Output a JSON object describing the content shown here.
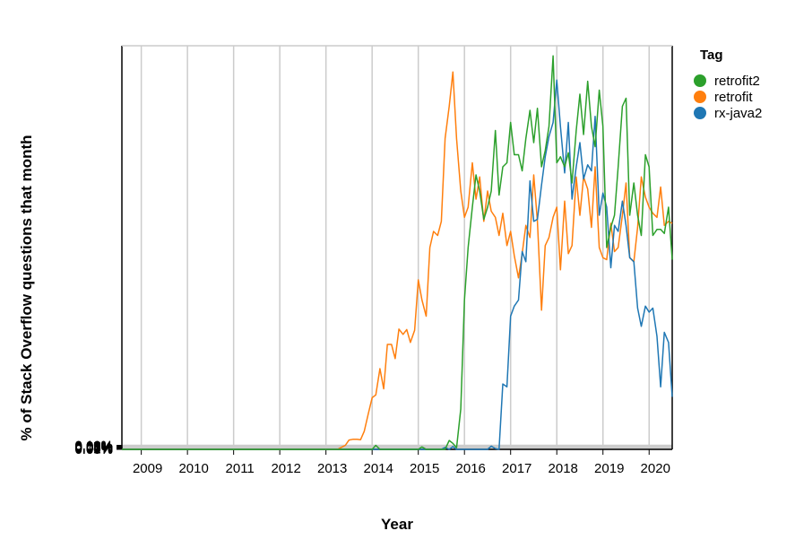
{
  "chart_data": {
    "type": "line",
    "xlabel": "Year",
    "ylabel": "% of Stack Overflow questions that month",
    "legend_title": "Tag",
    "legend_position": "top-right",
    "grid": true,
    "xlim": [
      2008.58,
      2020.5
    ],
    "ylim": [
      0,
      0.1
    ],
    "x_ticks": [
      "2009",
      "2010",
      "2011",
      "2012",
      "2013",
      "2014",
      "2015",
      "2016",
      "2017",
      "2018",
      "2019",
      "2020"
    ],
    "y_ticks": [
      "0.00%",
      "0.01%",
      "0.02%",
      "0.03%",
      "0.04%",
      "0.05%",
      "0.06%",
      "0.07%",
      "0.08%",
      "0.09%",
      "0.10%"
    ],
    "series": [
      {
        "name": "retrofit2",
        "color": "#2ca02c",
        "points": [
          [
            2008.58,
            0
          ],
          [
            2014.0,
            0
          ],
          [
            2014.08,
            0.001
          ],
          [
            2014.17,
            0
          ],
          [
            2015.0,
            0
          ],
          [
            2015.08,
            0.0006
          ],
          [
            2015.17,
            0
          ],
          [
            2015.58,
            0
          ],
          [
            2015.67,
            0.0022
          ],
          [
            2015.75,
            0.0015
          ],
          [
            2015.83,
            0.0004
          ],
          [
            2015.92,
            0.01
          ],
          [
            2016.0,
            0.037
          ],
          [
            2016.08,
            0.05
          ],
          [
            2016.17,
            0.06
          ],
          [
            2016.25,
            0.068
          ],
          [
            2016.33,
            0.064
          ],
          [
            2016.42,
            0.057
          ],
          [
            2016.5,
            0.06
          ],
          [
            2016.58,
            0.064
          ],
          [
            2016.67,
            0.079
          ],
          [
            2016.75,
            0.063
          ],
          [
            2016.83,
            0.07
          ],
          [
            2016.92,
            0.071
          ],
          [
            2017.0,
            0.081
          ],
          [
            2017.08,
            0.073
          ],
          [
            2017.17,
            0.073
          ],
          [
            2017.25,
            0.069
          ],
          [
            2017.33,
            0.077
          ],
          [
            2017.42,
            0.084
          ],
          [
            2017.5,
            0.076
          ],
          [
            2017.58,
            0.0845
          ],
          [
            2017.67,
            0.07
          ],
          [
            2017.75,
            0.074
          ],
          [
            2017.83,
            0.08
          ],
          [
            2017.92,
            0.0975
          ],
          [
            2018.0,
            0.071
          ],
          [
            2018.08,
            0.0725
          ],
          [
            2018.17,
            0.07
          ],
          [
            2018.25,
            0.0735
          ],
          [
            2018.33,
            0.066
          ],
          [
            2018.42,
            0.079
          ],
          [
            2018.5,
            0.088
          ],
          [
            2018.58,
            0.078
          ],
          [
            2018.67,
            0.0912
          ],
          [
            2018.75,
            0.08
          ],
          [
            2018.83,
            0.075
          ],
          [
            2018.92,
            0.089
          ],
          [
            2019.0,
            0.08
          ],
          [
            2019.08,
            0.05
          ],
          [
            2019.17,
            0.055
          ],
          [
            2019.25,
            0.058
          ],
          [
            2019.33,
            0.07
          ],
          [
            2019.42,
            0.085
          ],
          [
            2019.5,
            0.087
          ],
          [
            2019.58,
            0.058
          ],
          [
            2019.67,
            0.066
          ],
          [
            2019.75,
            0.058
          ],
          [
            2019.83,
            0.053
          ],
          [
            2019.92,
            0.073
          ],
          [
            2020.0,
            0.07
          ],
          [
            2020.08,
            0.053
          ],
          [
            2020.17,
            0.0545
          ],
          [
            2020.25,
            0.0545
          ],
          [
            2020.33,
            0.0535
          ],
          [
            2020.42,
            0.06
          ],
          [
            2020.5,
            0.047
          ]
        ]
      },
      {
        "name": "retrofit",
        "color": "#ff7f0e",
        "points": [
          [
            2008.58,
            0
          ],
          [
            2013.25,
            0
          ],
          [
            2013.33,
            0.0005
          ],
          [
            2013.42,
            0.001
          ],
          [
            2013.5,
            0.0023
          ],
          [
            2013.58,
            0.0025
          ],
          [
            2013.67,
            0.0025
          ],
          [
            2013.75,
            0.0024
          ],
          [
            2013.83,
            0.0045
          ],
          [
            2013.92,
            0.009
          ],
          [
            2014.0,
            0.0128
          ],
          [
            2014.08,
            0.0135
          ],
          [
            2014.17,
            0.02
          ],
          [
            2014.25,
            0.015
          ],
          [
            2014.33,
            0.026
          ],
          [
            2014.42,
            0.026
          ],
          [
            2014.5,
            0.0225
          ],
          [
            2014.58,
            0.0298
          ],
          [
            2014.67,
            0.0285
          ],
          [
            2014.75,
            0.0297
          ],
          [
            2014.83,
            0.0265
          ],
          [
            2014.92,
            0.0295
          ],
          [
            2015.0,
            0.042
          ],
          [
            2015.08,
            0.037
          ],
          [
            2015.17,
            0.033
          ],
          [
            2015.25,
            0.05
          ],
          [
            2015.33,
            0.054
          ],
          [
            2015.42,
            0.053
          ],
          [
            2015.5,
            0.0565
          ],
          [
            2015.58,
            0.077
          ],
          [
            2015.67,
            0.085
          ],
          [
            2015.75,
            0.0935
          ],
          [
            2015.83,
            0.077
          ],
          [
            2015.92,
            0.064
          ],
          [
            2016.0,
            0.0575
          ],
          [
            2016.08,
            0.06
          ],
          [
            2016.17,
            0.071
          ],
          [
            2016.25,
            0.062
          ],
          [
            2016.33,
            0.0675
          ],
          [
            2016.42,
            0.0565
          ],
          [
            2016.5,
            0.064
          ],
          [
            2016.58,
            0.059
          ],
          [
            2016.67,
            0.0575
          ],
          [
            2016.75,
            0.053
          ],
          [
            2016.83,
            0.0585
          ],
          [
            2016.92,
            0.0505
          ],
          [
            2017.0,
            0.054
          ],
          [
            2017.08,
            0.048
          ],
          [
            2017.17,
            0.0425
          ],
          [
            2017.25,
            0.0485
          ],
          [
            2017.33,
            0.0555
          ],
          [
            2017.42,
            0.0525
          ],
          [
            2017.5,
            0.068
          ],
          [
            2017.58,
            0.0565
          ],
          [
            2017.67,
            0.0345
          ],
          [
            2017.75,
            0.0505
          ],
          [
            2017.83,
            0.0525
          ],
          [
            2017.92,
            0.0575
          ],
          [
            2018.0,
            0.06
          ],
          [
            2018.08,
            0.0445
          ],
          [
            2018.17,
            0.0615
          ],
          [
            2018.25,
            0.0485
          ],
          [
            2018.33,
            0.0505
          ],
          [
            2018.42,
            0.0675
          ],
          [
            2018.5,
            0.058
          ],
          [
            2018.58,
            0.0675
          ],
          [
            2018.67,
            0.0645
          ],
          [
            2018.75,
            0.055
          ],
          [
            2018.83,
            0.07
          ],
          [
            2018.92,
            0.05
          ],
          [
            2019.0,
            0.0475
          ],
          [
            2019.08,
            0.047
          ],
          [
            2019.17,
            0.056
          ],
          [
            2019.25,
            0.049
          ],
          [
            2019.33,
            0.05
          ],
          [
            2019.42,
            0.058
          ],
          [
            2019.5,
            0.066
          ],
          [
            2019.58,
            0.0475
          ],
          [
            2019.67,
            0.0465
          ],
          [
            2019.75,
            0.055
          ],
          [
            2019.83,
            0.0675
          ],
          [
            2019.92,
            0.0625
          ],
          [
            2020.0,
            0.06
          ],
          [
            2020.08,
            0.0585
          ],
          [
            2020.17,
            0.0575
          ],
          [
            2020.25,
            0.065
          ],
          [
            2020.33,
            0.0555
          ],
          [
            2020.42,
            0.0565
          ],
          [
            2020.5,
            0.056
          ]
        ]
      },
      {
        "name": "rx-java2",
        "color": "#1f77b4",
        "points": [
          [
            2008.58,
            0
          ],
          [
            2015.5,
            0
          ],
          [
            2015.58,
            0.0005
          ],
          [
            2015.67,
            0
          ],
          [
            2015.75,
            0.0007
          ],
          [
            2015.83,
            0
          ],
          [
            2016.42,
            0
          ],
          [
            2016.5,
            0
          ],
          [
            2016.58,
            0.0008
          ],
          [
            2016.67,
            0.0002
          ],
          [
            2016.75,
            0
          ],
          [
            2016.83,
            0.0162
          ],
          [
            2016.92,
            0.0155
          ],
          [
            2017.0,
            0.033
          ],
          [
            2017.08,
            0.0355
          ],
          [
            2017.17,
            0.037
          ],
          [
            2017.25,
            0.049
          ],
          [
            2017.33,
            0.0465
          ],
          [
            2017.42,
            0.0665
          ],
          [
            2017.5,
            0.0565
          ],
          [
            2017.58,
            0.057
          ],
          [
            2017.67,
            0.0655
          ],
          [
            2017.75,
            0.0725
          ],
          [
            2017.83,
            0.0775
          ],
          [
            2017.92,
            0.081
          ],
          [
            2018.0,
            0.0915
          ],
          [
            2018.08,
            0.08
          ],
          [
            2018.17,
            0.0685
          ],
          [
            2018.25,
            0.081
          ],
          [
            2018.33,
            0.062
          ],
          [
            2018.42,
            0.07
          ],
          [
            2018.5,
            0.076
          ],
          [
            2018.58,
            0.067
          ],
          [
            2018.67,
            0.0705
          ],
          [
            2018.75,
            0.069
          ],
          [
            2018.83,
            0.0825
          ],
          [
            2018.92,
            0.058
          ],
          [
            2019.0,
            0.0635
          ],
          [
            2019.08,
            0.06
          ],
          [
            2019.17,
            0.045
          ],
          [
            2019.25,
            0.0555
          ],
          [
            2019.33,
            0.054
          ],
          [
            2019.42,
            0.0615
          ],
          [
            2019.5,
            0.0555
          ],
          [
            2019.58,
            0.0475
          ],
          [
            2019.67,
            0.0465
          ],
          [
            2019.75,
            0.035
          ],
          [
            2019.83,
            0.0305
          ],
          [
            2019.92,
            0.0355
          ],
          [
            2020.0,
            0.034
          ],
          [
            2020.08,
            0.035
          ],
          [
            2020.17,
            0.028
          ],
          [
            2020.25,
            0.0155
          ],
          [
            2020.33,
            0.029
          ],
          [
            2020.42,
            0.0265
          ],
          [
            2020.5,
            0.013
          ]
        ]
      }
    ]
  }
}
